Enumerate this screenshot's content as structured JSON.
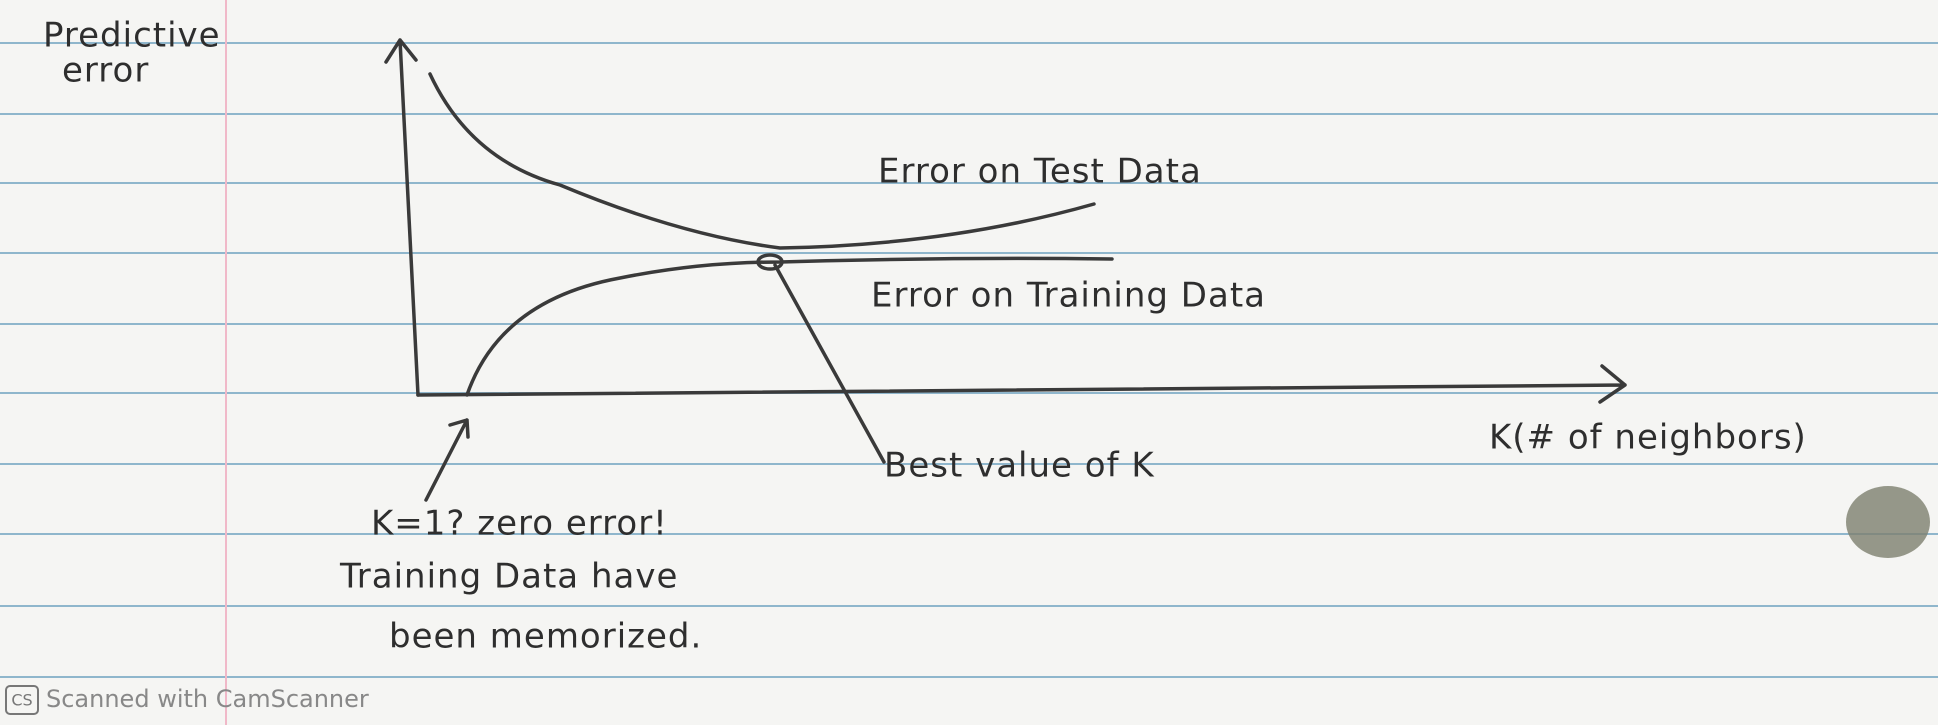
{
  "diagram": {
    "y_axis_label": [
      "Predictive",
      "error"
    ],
    "x_axis_label": "K(# of neighbors)",
    "curves": [
      {
        "label": "Error on Test Data"
      },
      {
        "label": "Error on Training Data"
      }
    ],
    "annotations": [
      {
        "label": "Best value of K"
      },
      {
        "lines": [
          "K=1? zero error!",
          "Training Data have",
          "been memorized."
        ]
      }
    ]
  },
  "footer": {
    "badge": "CS",
    "text": "Scanned with CamScanner"
  }
}
